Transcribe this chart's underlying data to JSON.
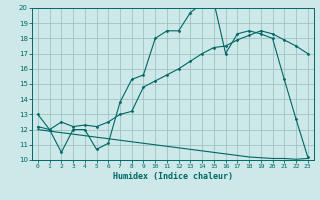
{
  "bg_color": "#cce8e8",
  "grid_color": "#99bbbb",
  "line_color": "#006666",
  "line1": [
    13,
    12,
    10.5,
    12,
    12,
    10.7,
    11.1,
    13.8,
    15.3,
    15.6,
    18,
    18.5,
    18.5,
    19.7,
    20.3,
    20.4,
    17,
    18.3,
    18.5,
    18.3,
    18,
    15.3,
    12.7,
    10.2
  ],
  "line2": [
    12.2,
    12.0,
    12.5,
    12.2,
    12.3,
    12.2,
    12.5,
    13.0,
    13.2,
    14.8,
    15.2,
    15.6,
    16.0,
    16.5,
    17.0,
    17.4,
    17.5,
    17.9,
    18.2,
    18.5,
    18.3,
    17.9,
    17.5,
    17.0
  ],
  "line3": [
    12.0,
    11.9,
    11.8,
    11.7,
    11.6,
    11.5,
    11.4,
    11.3,
    11.2,
    11.1,
    11.0,
    10.9,
    10.8,
    10.7,
    10.6,
    10.5,
    10.4,
    10.3,
    10.2,
    10.15,
    10.1,
    10.1,
    10.05,
    10.1
  ],
  "xlabel": "Humidex (Indice chaleur)",
  "xlim": [
    -0.5,
    23.5
  ],
  "ylim": [
    10,
    20
  ],
  "yticks": [
    10,
    11,
    12,
    13,
    14,
    15,
    16,
    17,
    18,
    19,
    20
  ],
  "xticks": [
    0,
    1,
    2,
    3,
    4,
    5,
    6,
    7,
    8,
    9,
    10,
    11,
    12,
    13,
    14,
    15,
    16,
    17,
    18,
    19,
    20,
    21,
    22,
    23
  ]
}
